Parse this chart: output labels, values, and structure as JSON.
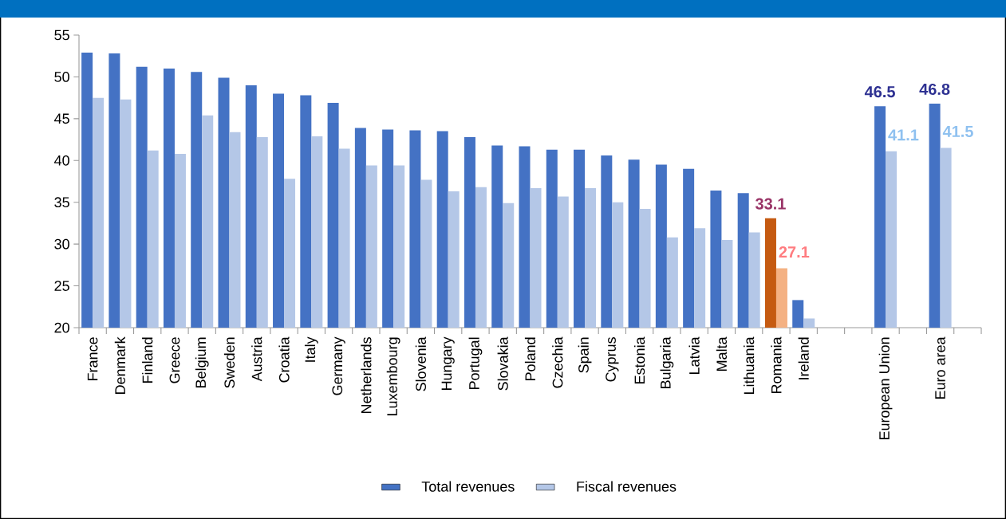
{
  "chart_data": {
    "type": "bar",
    "categories": [
      "France",
      "Denmark",
      "Finland",
      "Greece",
      "Belgium",
      "Sweden",
      "Austria",
      "Croatia",
      "Italy",
      "Germany",
      "Netherlands",
      "Luxembourg",
      "Slovenia",
      "Hungary",
      "Portugal",
      "Slovakia",
      "Poland",
      "Czechia",
      "Spain",
      "Cyprus",
      "Estonia",
      "Bulgaria",
      "Latvia",
      "Malta",
      "Lithuania",
      "Romania",
      "Ireland",
      null,
      null,
      "European Union",
      null,
      "Euro area",
      null
    ],
    "series": [
      {
        "name": "Total revenues",
        "color": "#4472c4",
        "colors": [
          "#4472c4",
          "#4472c4",
          "#4472c4",
          "#4472c4",
          "#4472c4",
          "#4472c4",
          "#4472c4",
          "#4472c4",
          "#4472c4",
          "#4472c4",
          "#4472c4",
          "#4472c4",
          "#4472c4",
          "#4472c4",
          "#4472c4",
          "#4472c4",
          "#4472c4",
          "#4472c4",
          "#4472c4",
          "#4472c4",
          "#4472c4",
          "#4472c4",
          "#4472c4",
          "#4472c4",
          "#4472c4",
          "#c55a11",
          "#4472c4",
          "#4472c4",
          "#4472c4",
          "#4472c4",
          "#4472c4",
          "#4472c4",
          "#4472c4"
        ],
        "values": [
          52.9,
          52.8,
          51.2,
          51.0,
          50.6,
          49.9,
          49.0,
          48.0,
          47.8,
          46.9,
          43.9,
          43.7,
          43.6,
          43.5,
          42.8,
          41.8,
          41.7,
          41.3,
          41.3,
          40.6,
          40.1,
          39.5,
          39.0,
          36.4,
          36.1,
          33.1,
          23.3,
          null,
          null,
          46.5,
          null,
          46.8,
          null
        ],
        "value_labels": [
          null,
          null,
          null,
          null,
          null,
          null,
          null,
          null,
          null,
          null,
          null,
          null,
          null,
          null,
          null,
          null,
          null,
          null,
          null,
          null,
          null,
          null,
          null,
          null,
          null,
          "33.1",
          null,
          null,
          null,
          "46.5",
          null,
          "46.8",
          null
        ]
      },
      {
        "name": "Fiscal revenues",
        "color": "#b4c7e7",
        "colors": [
          "#b4c7e7",
          "#b4c7e7",
          "#b4c7e7",
          "#b4c7e7",
          "#b4c7e7",
          "#b4c7e7",
          "#b4c7e7",
          "#b4c7e7",
          "#b4c7e7",
          "#b4c7e7",
          "#b4c7e7",
          "#b4c7e7",
          "#b4c7e7",
          "#b4c7e7",
          "#b4c7e7",
          "#b4c7e7",
          "#b4c7e7",
          "#b4c7e7",
          "#b4c7e7",
          "#b4c7e7",
          "#b4c7e7",
          "#b4c7e7",
          "#b4c7e7",
          "#b4c7e7",
          "#b4c7e7",
          "#f4b183",
          "#b4c7e7",
          "#b4c7e7",
          "#b4c7e7",
          "#b4c7e7",
          "#b4c7e7",
          "#b4c7e7",
          "#b4c7e7"
        ],
        "values": [
          47.5,
          47.3,
          41.2,
          40.8,
          45.4,
          43.4,
          42.8,
          37.8,
          42.9,
          41.4,
          39.4,
          39.4,
          37.7,
          36.3,
          36.8,
          34.9,
          36.7,
          35.7,
          36.7,
          35.0,
          34.2,
          30.8,
          31.9,
          30.5,
          31.4,
          27.1,
          21.1,
          null,
          null,
          41.1,
          null,
          41.5,
          null
        ],
        "value_labels": [
          null,
          null,
          null,
          null,
          null,
          null,
          null,
          null,
          null,
          null,
          null,
          null,
          null,
          null,
          null,
          null,
          null,
          null,
          null,
          null,
          null,
          null,
          null,
          null,
          null,
          "27.1",
          null,
          null,
          null,
          "41.1",
          null,
          "41.5",
          null
        ]
      }
    ],
    "ylim": [
      20,
      55
    ],
    "yticks": [
      20,
      25,
      30,
      35,
      40,
      45,
      50,
      55
    ],
    "legend": "bottom"
  }
}
